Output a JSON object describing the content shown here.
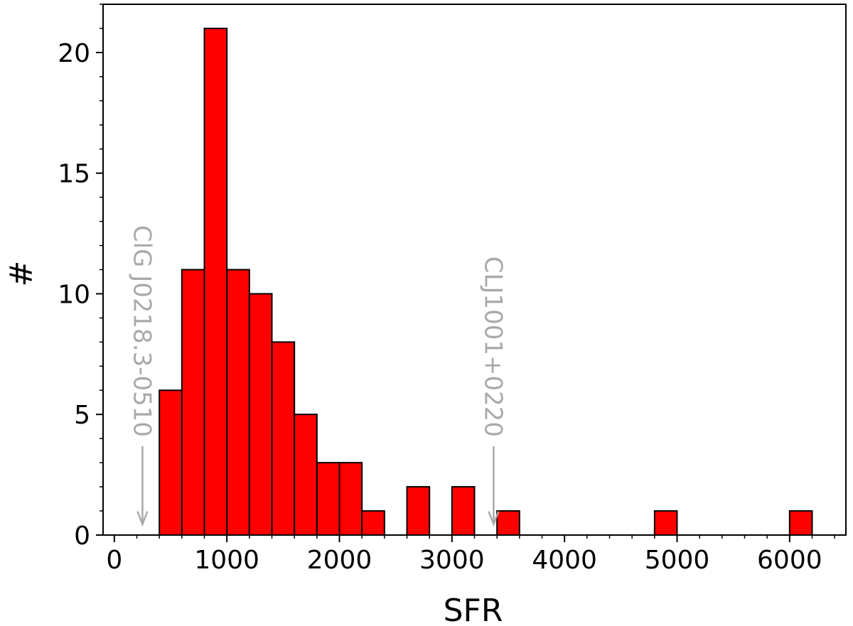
{
  "chart_data": {
    "type": "bar",
    "title": "",
    "xlabel": "SFR",
    "ylabel": "#",
    "xlim": [
      -100,
      6500
    ],
    "ylim": [
      0,
      22
    ],
    "xticks": [
      0,
      1000,
      2000,
      3000,
      4000,
      5000,
      6000
    ],
    "yticks": [
      0,
      5,
      10,
      15,
      20
    ],
    "grid": false,
    "bar_color": "#ff0000",
    "edge_color": "#000000",
    "bins": [
      {
        "x0": 400,
        "x1": 600,
        "count": 6
      },
      {
        "x0": 600,
        "x1": 800,
        "count": 11
      },
      {
        "x0": 800,
        "x1": 1000,
        "count": 21
      },
      {
        "x0": 1000,
        "x1": 1200,
        "count": 11
      },
      {
        "x0": 1200,
        "x1": 1400,
        "count": 10
      },
      {
        "x0": 1400,
        "x1": 1600,
        "count": 8
      },
      {
        "x0": 1600,
        "x1": 1800,
        "count": 5
      },
      {
        "x0": 1800,
        "x1": 2000,
        "count": 3
      },
      {
        "x0": 2000,
        "x1": 2200,
        "count": 3
      },
      {
        "x0": 2200,
        "x1": 2400,
        "count": 1
      },
      {
        "x0": 2600,
        "x1": 2800,
        "count": 2
      },
      {
        "x0": 3000,
        "x1": 3200,
        "count": 2
      },
      {
        "x0": 3400,
        "x1": 3600,
        "count": 1
      },
      {
        "x0": 4800,
        "x1": 5000,
        "count": 1
      },
      {
        "x0": 6000,
        "x1": 6200,
        "count": 1
      }
    ],
    "annotations": [
      {
        "text": "ClG J0218.3-0510",
        "x": 250,
        "color": "#a9a9a9"
      },
      {
        "text": "CLJ1001+0220",
        "x": 3370,
        "color": "#a9a9a9"
      }
    ]
  }
}
